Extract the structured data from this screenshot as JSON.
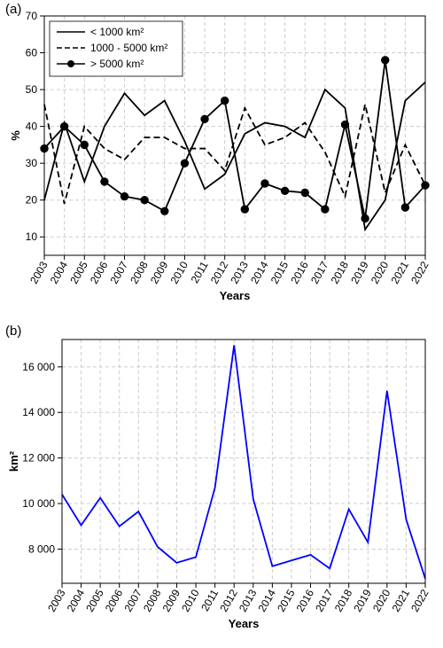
{
  "panel_a": {
    "label": "(a)",
    "type": "line",
    "xlabel": "Years",
    "ylabel": "%",
    "xlim": [
      2003,
      2022
    ],
    "ylim": [
      5,
      70
    ],
    "yticks": [
      10,
      20,
      30,
      40,
      50,
      60,
      70
    ],
    "categories": [
      2003,
      2004,
      2005,
      2006,
      2007,
      2008,
      2009,
      2010,
      2011,
      2012,
      2013,
      2014,
      2015,
      2016,
      2017,
      2018,
      2019,
      2020,
      2021,
      2022
    ],
    "series": [
      {
        "name": "< 1000 km²",
        "dash": "solid",
        "marker": "none",
        "color": "#000000",
        "width": 1.8,
        "values": [
          20,
          41,
          25,
          40,
          49,
          43,
          47,
          36,
          23,
          27,
          38,
          41,
          40,
          37,
          50,
          45,
          12,
          20,
          47,
          52
        ]
      },
      {
        "name": "1000 - 5000 km²",
        "dash": "dashed",
        "marker": "none",
        "color": "#000000",
        "width": 1.8,
        "values": [
          46,
          19,
          40,
          34,
          31,
          37,
          37,
          34,
          34,
          28,
          45,
          35,
          37,
          41,
          33,
          21,
          46,
          22,
          35,
          24
        ]
      },
      {
        "name": "> 5000 km²",
        "dash": "solid",
        "marker": "circle",
        "color": "#000000",
        "width": 1.8,
        "values": [
          34,
          40,
          35,
          25,
          21,
          20,
          17,
          30,
          42,
          47,
          17.5,
          24.5,
          22.5,
          22,
          17.5,
          40.5,
          15,
          58,
          18,
          24
        ]
      }
    ],
    "legend_pos": "top-left",
    "grid_color": "#cccccc",
    "background": "#ffffff",
    "label_fontsize": 13,
    "tick_fontsize": 12
  },
  "panel_b": {
    "label": "(b)",
    "type": "line",
    "xlabel": "Years",
    "ylabel": "km²",
    "xlim": [
      2003,
      2022
    ],
    "ylim": [
      6500,
      17200
    ],
    "yticks": [
      8000,
      10000,
      12000,
      14000,
      16000
    ],
    "ytick_labels": [
      "8 000",
      "10 000",
      "12 000",
      "14 000",
      "16 000"
    ],
    "categories": [
      2003,
      2004,
      2005,
      2006,
      2007,
      2008,
      2009,
      2010,
      2011,
      2012,
      2013,
      2014,
      2015,
      2016,
      2017,
      2018,
      2019,
      2020,
      2021,
      2022
    ],
    "series": [
      {
        "name": "area",
        "dash": "solid",
        "marker": "none",
        "color": "#0000ff",
        "width": 1.8,
        "values": [
          10400,
          9050,
          10250,
          9000,
          9650,
          8100,
          7400,
          7650,
          10700,
          16950,
          10200,
          7250,
          7500,
          7750,
          7150,
          9750,
          8300,
          14950,
          9300,
          6700
        ]
      }
    ],
    "grid_color": "#cccccc",
    "background": "#ffffff",
    "label_fontsize": 13,
    "tick_fontsize": 12
  }
}
